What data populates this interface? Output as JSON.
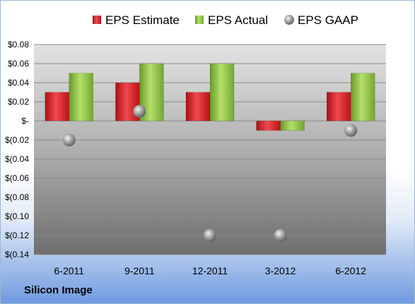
{
  "company_label": "Silicon Image",
  "chart_data": {
    "type": "bar",
    "categories": [
      "6-2011",
      "9-2011",
      "12-2011",
      "3-2012",
      "6-2012"
    ],
    "series": [
      {
        "name": "EPS Estimate",
        "kind": "bar",
        "color": "#d9161c",
        "values": [
          0.03,
          0.04,
          0.03,
          -0.01,
          0.03
        ]
      },
      {
        "name": "EPS Actual",
        "kind": "bar",
        "color": "#8fc63f",
        "values": [
          0.05,
          0.06,
          0.06,
          -0.01,
          0.05
        ]
      },
      {
        "name": "EPS GAAP",
        "kind": "marker",
        "color": "#9c9c9c",
        "values": [
          -0.02,
          0.01,
          -0.12,
          -0.12,
          -0.01
        ]
      }
    ],
    "ylim": [
      -0.14,
      0.08
    ],
    "yticks": [
      0.08,
      0.06,
      0.04,
      0.02,
      0,
      -0.02,
      -0.04,
      -0.06,
      -0.08,
      -0.1,
      -0.12,
      -0.14
    ],
    "ytick_labels": [
      "$0.08",
      "$0.06",
      "$0.04",
      "$0.02",
      "$-",
      "$(0.02",
      "$(0.04",
      "$(0.06",
      "$(0.08",
      "$(0.10",
      "$(0.12",
      "$(0.14"
    ],
    "legend_position": "top",
    "grid": true
  }
}
